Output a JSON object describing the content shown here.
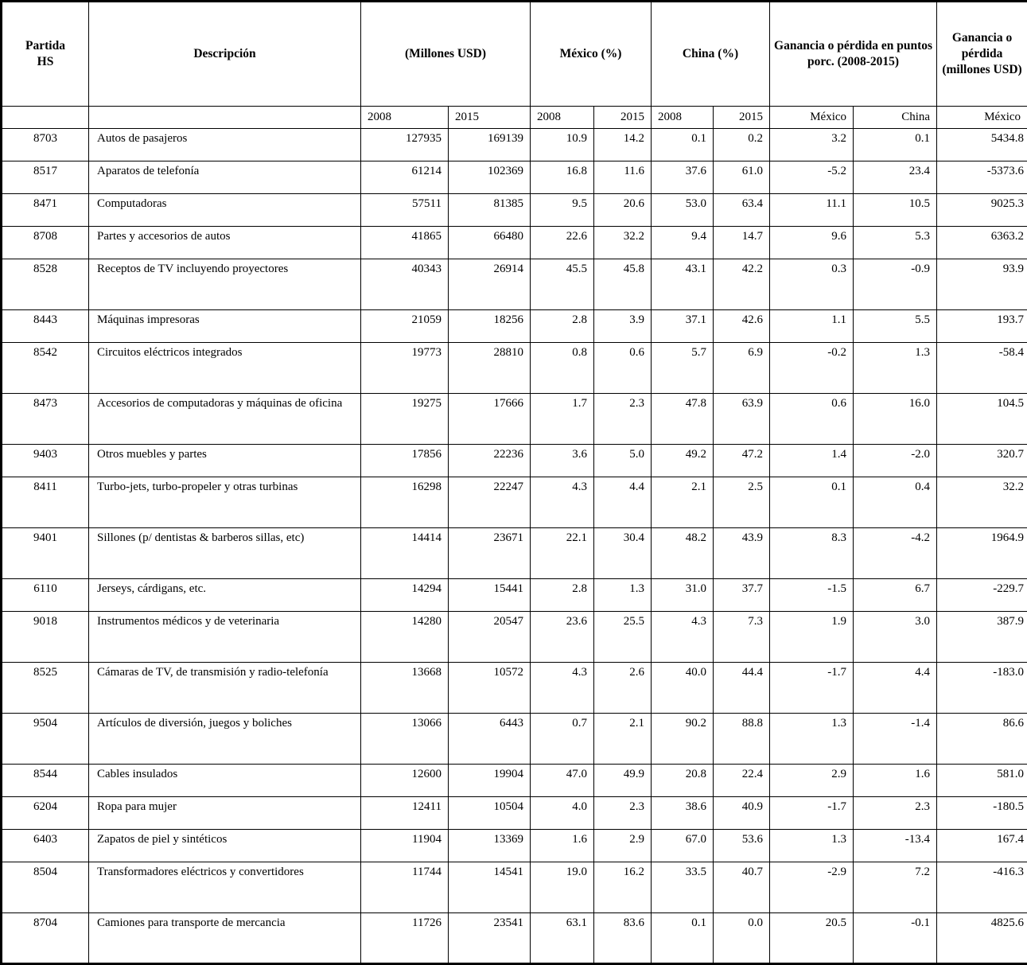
{
  "table": {
    "headers": {
      "partida": "Partida\nHS",
      "descripcion": "Descripción",
      "millones": "(Millones USD)",
      "mexico_pct": "México (%)",
      "china_pct": "China (%)",
      "ganancia_puntos": "Ganancia o pérdida en puntos porc. (2008-2015)",
      "ganancia_millones": "Ganancia o pérdida (millones USD)"
    },
    "subheader": [
      "2008",
      "2015",
      "2008",
      "2015",
      "2008",
      "2015",
      "México",
      "China",
      "México"
    ],
    "rows": [
      {
        "tall": false,
        "cells": [
          "8703",
          "Autos de pasajeros",
          "127935",
          "169139",
          "10.9",
          "14.2",
          "0.1",
          "0.2",
          "3.2",
          "0.1",
          "5434.8"
        ]
      },
      {
        "tall": false,
        "cells": [
          "8517",
          "Aparatos de telefonía",
          "61214",
          "102369",
          "16.8",
          "11.6",
          "37.6",
          "61.0",
          "-5.2",
          "23.4",
          "-5373.6"
        ]
      },
      {
        "tall": false,
        "cells": [
          "8471",
          "Computadoras",
          "57511",
          "81385",
          "9.5",
          "20.6",
          "53.0",
          "63.4",
          "11.1",
          "10.5",
          "9025.3"
        ]
      },
      {
        "tall": false,
        "cells": [
          "8708",
          "Partes y accesorios de autos",
          "41865",
          "66480",
          "22.6",
          "32.2",
          "9.4",
          "14.7",
          "9.6",
          "5.3",
          "6363.2"
        ]
      },
      {
        "tall": true,
        "cells": [
          "8528",
          "Receptos de TV incluyendo proyectores",
          "40343",
          "26914",
          "45.5",
          "45.8",
          "43.1",
          "42.2",
          "0.3",
          "-0.9",
          "93.9"
        ]
      },
      {
        "tall": false,
        "cells": [
          "8443",
          "Máquinas impresoras",
          "21059",
          "18256",
          "2.8",
          "3.9",
          "37.1",
          "42.6",
          "1.1",
          "5.5",
          "193.7"
        ]
      },
      {
        "tall": true,
        "cells": [
          "8542",
          "Circuitos eléctricos integrados",
          "19773",
          "28810",
          "0.8",
          "0.6",
          "5.7",
          "6.9",
          "-0.2",
          "1.3",
          "-58.4"
        ]
      },
      {
        "tall": true,
        "cells": [
          "8473",
          "Accesorios de computadoras y máquinas de oficina",
          "19275",
          "17666",
          "1.7",
          "2.3",
          "47.8",
          "63.9",
          "0.6",
          "16.0",
          "104.5"
        ]
      },
      {
        "tall": false,
        "cells": [
          "9403",
          "Otros muebles y partes",
          "17856",
          "22236",
          "3.6",
          "5.0",
          "49.2",
          "47.2",
          "1.4",
          "-2.0",
          "320.7"
        ]
      },
      {
        "tall": true,
        "cells": [
          "8411",
          "Turbo-jets, turbo-propeler y otras turbinas",
          "16298",
          "22247",
          "4.3",
          "4.4",
          "2.1",
          "2.5",
          "0.1",
          "0.4",
          "32.2"
        ]
      },
      {
        "tall": true,
        "cells": [
          "9401",
          "Sillones (p/ dentistas & barberos sillas, etc)",
          "14414",
          "23671",
          "22.1",
          "30.4",
          "48.2",
          "43.9",
          "8.3",
          "-4.2",
          "1964.9"
        ]
      },
      {
        "tall": false,
        "cells": [
          "6110",
          "Jerseys, cárdigans, etc.",
          "14294",
          "15441",
          "2.8",
          "1.3",
          "31.0",
          "37.7",
          "-1.5",
          "6.7",
          "-229.7"
        ]
      },
      {
        "tall": true,
        "cells": [
          "9018",
          "Instrumentos médicos y de veterinaria",
          "14280",
          "20547",
          "23.6",
          "25.5",
          "4.3",
          "7.3",
          "1.9",
          "3.0",
          "387.9"
        ]
      },
      {
        "tall": true,
        "cells": [
          "8525",
          "Cámaras de TV, de transmisión y radio-telefonía",
          "13668",
          "10572",
          "4.3",
          "2.6",
          "40.0",
          "44.4",
          "-1.7",
          "4.4",
          "-183.0"
        ]
      },
      {
        "tall": true,
        "cells": [
          "9504",
          "Artículos de diversión, juegos y boliches",
          "13066",
          "6443",
          "0.7",
          "2.1",
          "90.2",
          "88.8",
          "1.3",
          "-1.4",
          "86.6"
        ]
      },
      {
        "tall": false,
        "cells": [
          "8544",
          "Cables insulados",
          "12600",
          "19904",
          "47.0",
          "49.9",
          "20.8",
          "22.4",
          "2.9",
          "1.6",
          "581.0"
        ]
      },
      {
        "tall": false,
        "cells": [
          "6204",
          "Ropa para mujer",
          "12411",
          "10504",
          "4.0",
          "2.3",
          "38.6",
          "40.9",
          "-1.7",
          "2.3",
          "-180.5"
        ]
      },
      {
        "tall": false,
        "cells": [
          "6403",
          "Zapatos de piel y sintéticos",
          "11904",
          "13369",
          "1.6",
          "2.9",
          "67.0",
          "53.6",
          "1.3",
          "-13.4",
          "167.4"
        ]
      },
      {
        "tall": true,
        "cells": [
          "8504",
          "Transformadores eléctricos y convertidores",
          "11744",
          "14541",
          "19.0",
          "16.2",
          "33.5",
          "40.7",
          "-2.9",
          "7.2",
          "-416.3"
        ]
      },
      {
        "tall": true,
        "cells": [
          "8704",
          "Camiones para transporte de mercancia",
          "11726",
          "23541",
          "63.1",
          "83.6",
          "0.1",
          "0.0",
          "20.5",
          "-0.1",
          "4825.6"
        ]
      }
    ]
  }
}
